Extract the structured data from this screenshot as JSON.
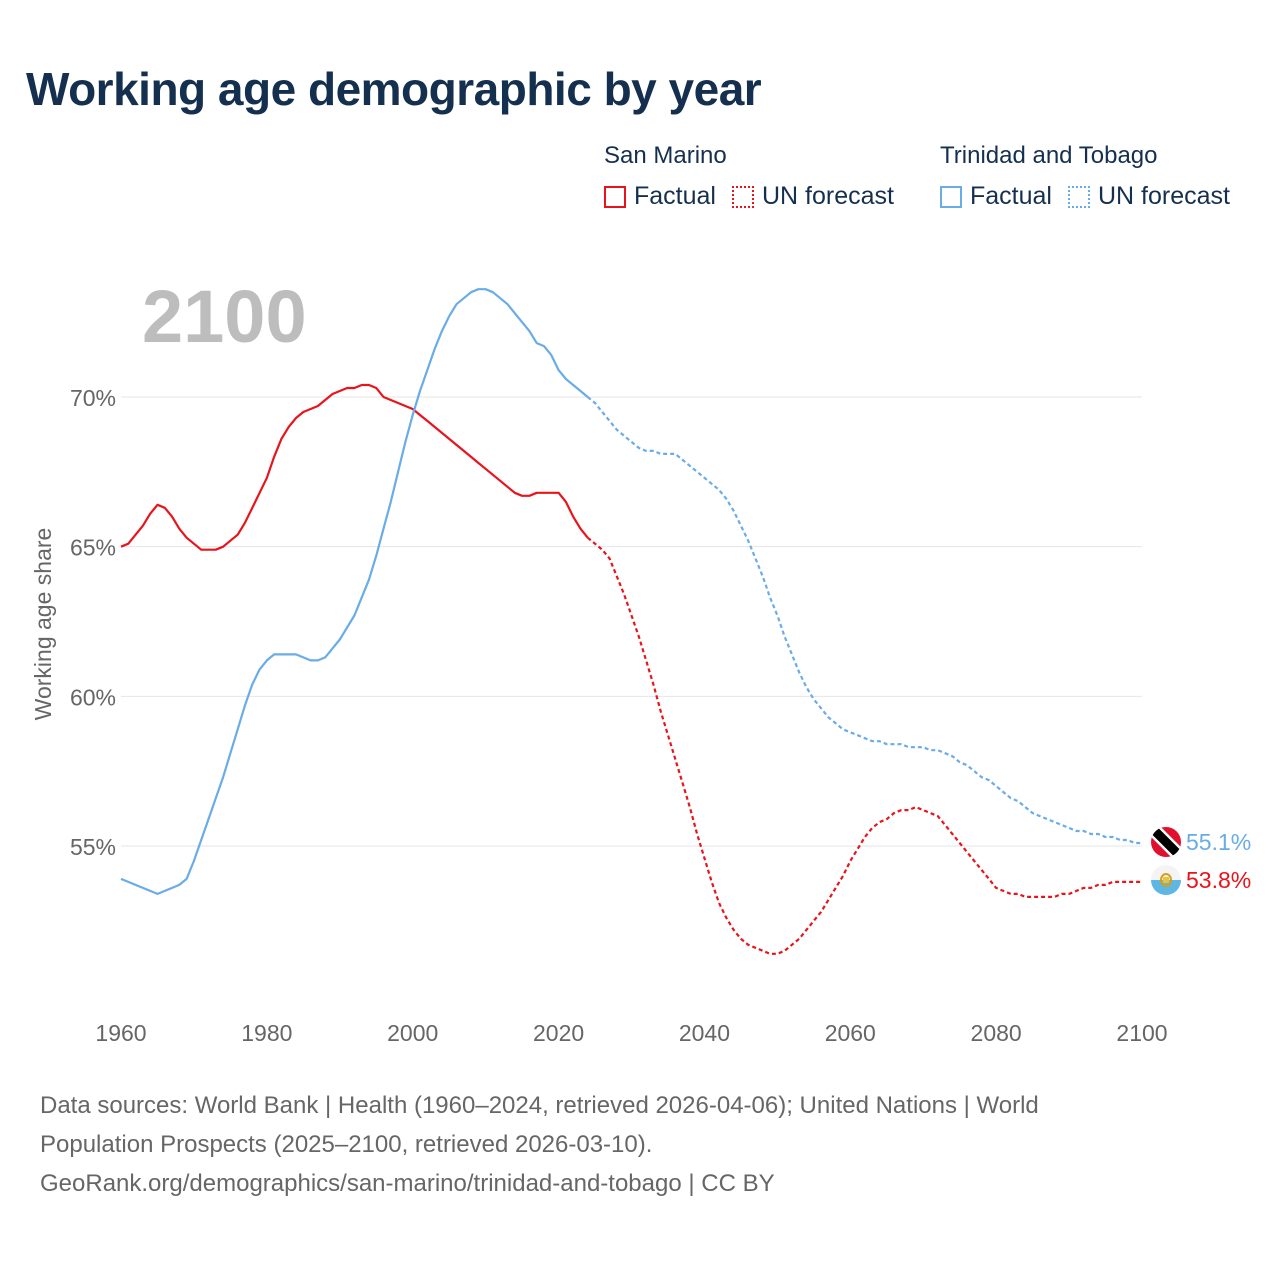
{
  "title": "Working age demographic by year",
  "legend": {
    "groups": [
      {
        "name": "San Marino",
        "factual_label": "Factual",
        "forecast_label": "UN forecast",
        "color": "#e8141c"
      },
      {
        "name": "Trinidad and Tobago",
        "factual_label": "Factual",
        "forecast_label": "UN forecast",
        "color": "#6aace6"
      }
    ]
  },
  "footer": {
    "line1": "Data sources: World Bank | Health (1960–2024, retrieved 2026-04-06); United Nations | World",
    "line2": "Population Prospects (2025–2100, retrieved 2026-03-10).",
    "line3": "GeoRank.org/demographics/san-marino/trinidad-and-tobago | CC BY"
  },
  "chart_data": {
    "type": "line",
    "year_label": "2100",
    "ylabel": "Working age share",
    "xlim": [
      1960,
      2100
    ],
    "ylim": [
      49.5,
      74.0
    ],
    "x_ticks": [
      "1960",
      "1980",
      "2000",
      "2020",
      "2040",
      "2060",
      "2080",
      "2100"
    ],
    "y_ticks": [
      {
        "value": 55,
        "label": "55%"
      },
      {
        "value": 60,
        "label": "60%"
      },
      {
        "value": 65,
        "label": "65%"
      },
      {
        "value": 70,
        "label": "70%"
      }
    ],
    "factual_end_year": 2024,
    "series": [
      {
        "name": "San Marino",
        "color": "#e8141c",
        "end_label": "53.8%",
        "points": [
          [
            1960,
            65.0
          ],
          [
            1961,
            65.1
          ],
          [
            1962,
            65.4
          ],
          [
            1963,
            65.7
          ],
          [
            1964,
            66.1
          ],
          [
            1965,
            66.4
          ],
          [
            1966,
            66.3
          ],
          [
            1967,
            66.0
          ],
          [
            1968,
            65.6
          ],
          [
            1969,
            65.3
          ],
          [
            1970,
            65.1
          ],
          [
            1971,
            64.9
          ],
          [
            1972,
            64.9
          ],
          [
            1973,
            64.9
          ],
          [
            1974,
            65.0
          ],
          [
            1975,
            65.2
          ],
          [
            1976,
            65.4
          ],
          [
            1977,
            65.8
          ],
          [
            1978,
            66.3
          ],
          [
            1979,
            66.8
          ],
          [
            1980,
            67.3
          ],
          [
            1981,
            68.0
          ],
          [
            1982,
            68.6
          ],
          [
            1983,
            69.0
          ],
          [
            1984,
            69.3
          ],
          [
            1985,
            69.5
          ],
          [
            1986,
            69.6
          ],
          [
            1987,
            69.7
          ],
          [
            1988,
            69.9
          ],
          [
            1989,
            70.1
          ],
          [
            1990,
            70.2
          ],
          [
            1991,
            70.3
          ],
          [
            1992,
            70.3
          ],
          [
            1993,
            70.4
          ],
          [
            1994,
            70.4
          ],
          [
            1995,
            70.3
          ],
          [
            1996,
            70.0
          ],
          [
            1997,
            69.9
          ],
          [
            1998,
            69.8
          ],
          [
            1999,
            69.7
          ],
          [
            2000,
            69.6
          ],
          [
            2001,
            69.4
          ],
          [
            2002,
            69.2
          ],
          [
            2003,
            69.0
          ],
          [
            2004,
            68.8
          ],
          [
            2005,
            68.6
          ],
          [
            2006,
            68.4
          ],
          [
            2007,
            68.2
          ],
          [
            2008,
            68.0
          ],
          [
            2009,
            67.8
          ],
          [
            2010,
            67.6
          ],
          [
            2011,
            67.4
          ],
          [
            2012,
            67.2
          ],
          [
            2013,
            67.0
          ],
          [
            2014,
            66.8
          ],
          [
            2015,
            66.7
          ],
          [
            2016,
            66.7
          ],
          [
            2017,
            66.8
          ],
          [
            2018,
            66.8
          ],
          [
            2019,
            66.8
          ],
          [
            2020,
            66.8
          ],
          [
            2021,
            66.5
          ],
          [
            2022,
            66.0
          ],
          [
            2023,
            65.6
          ],
          [
            2024,
            65.3
          ],
          [
            2025,
            65.1
          ],
          [
            2026,
            64.9
          ],
          [
            2027,
            64.6
          ],
          [
            2028,
            64.0
          ],
          [
            2029,
            63.4
          ],
          [
            2030,
            62.7
          ],
          [
            2031,
            62.0
          ],
          [
            2032,
            61.2
          ],
          [
            2033,
            60.4
          ],
          [
            2034,
            59.5
          ],
          [
            2035,
            58.7
          ],
          [
            2036,
            57.9
          ],
          [
            2037,
            57.1
          ],
          [
            2038,
            56.3
          ],
          [
            2039,
            55.4
          ],
          [
            2040,
            54.6
          ],
          [
            2041,
            53.8
          ],
          [
            2042,
            53.1
          ],
          [
            2043,
            52.6
          ],
          [
            2044,
            52.2
          ],
          [
            2045,
            51.9
          ],
          [
            2046,
            51.7
          ],
          [
            2047,
            51.6
          ],
          [
            2048,
            51.5
          ],
          [
            2049,
            51.4
          ],
          [
            2050,
            51.4
          ],
          [
            2051,
            51.5
          ],
          [
            2052,
            51.7
          ],
          [
            2053,
            51.9
          ],
          [
            2054,
            52.2
          ],
          [
            2055,
            52.5
          ],
          [
            2056,
            52.8
          ],
          [
            2057,
            53.2
          ],
          [
            2058,
            53.6
          ],
          [
            2059,
            54.0
          ],
          [
            2060,
            54.5
          ],
          [
            2061,
            54.9
          ],
          [
            2062,
            55.3
          ],
          [
            2063,
            55.6
          ],
          [
            2064,
            55.8
          ],
          [
            2065,
            55.9
          ],
          [
            2066,
            56.1
          ],
          [
            2067,
            56.2
          ],
          [
            2068,
            56.2
          ],
          [
            2069,
            56.3
          ],
          [
            2070,
            56.2
          ],
          [
            2071,
            56.1
          ],
          [
            2072,
            56.0
          ],
          [
            2073,
            55.7
          ],
          [
            2074,
            55.4
          ],
          [
            2075,
            55.1
          ],
          [
            2076,
            54.8
          ],
          [
            2077,
            54.5
          ],
          [
            2078,
            54.2
          ],
          [
            2079,
            53.9
          ],
          [
            2080,
            53.6
          ],
          [
            2081,
            53.5
          ],
          [
            2082,
            53.4
          ],
          [
            2083,
            53.4
          ],
          [
            2084,
            53.3
          ],
          [
            2085,
            53.3
          ],
          [
            2086,
            53.3
          ],
          [
            2087,
            53.3
          ],
          [
            2088,
            53.3
          ],
          [
            2089,
            53.4
          ],
          [
            2090,
            53.4
          ],
          [
            2091,
            53.5
          ],
          [
            2092,
            53.6
          ],
          [
            2093,
            53.6
          ],
          [
            2094,
            53.7
          ],
          [
            2095,
            53.7
          ],
          [
            2096,
            53.8
          ],
          [
            2097,
            53.8
          ],
          [
            2098,
            53.8
          ],
          [
            2099,
            53.8
          ],
          [
            2100,
            53.8
          ]
        ]
      },
      {
        "name": "Trinidad and Tobago",
        "color": "#6aace6",
        "end_label": "55.1%",
        "points": [
          [
            1960,
            53.9
          ],
          [
            1961,
            53.8
          ],
          [
            1962,
            53.7
          ],
          [
            1963,
            53.6
          ],
          [
            1964,
            53.5
          ],
          [
            1965,
            53.4
          ],
          [
            1966,
            53.5
          ],
          [
            1967,
            53.6
          ],
          [
            1968,
            53.7
          ],
          [
            1969,
            53.9
          ],
          [
            1970,
            54.5
          ],
          [
            1971,
            55.2
          ],
          [
            1972,
            55.9
          ],
          [
            1973,
            56.6
          ],
          [
            1974,
            57.3
          ],
          [
            1975,
            58.1
          ],
          [
            1976,
            58.9
          ],
          [
            1977,
            59.7
          ],
          [
            1978,
            60.4
          ],
          [
            1979,
            60.9
          ],
          [
            1980,
            61.2
          ],
          [
            1981,
            61.4
          ],
          [
            1982,
            61.4
          ],
          [
            1983,
            61.4
          ],
          [
            1984,
            61.4
          ],
          [
            1985,
            61.3
          ],
          [
            1986,
            61.2
          ],
          [
            1987,
            61.2
          ],
          [
            1988,
            61.3
          ],
          [
            1989,
            61.6
          ],
          [
            1990,
            61.9
          ],
          [
            1991,
            62.3
          ],
          [
            1992,
            62.7
          ],
          [
            1993,
            63.3
          ],
          [
            1994,
            63.9
          ],
          [
            1995,
            64.7
          ],
          [
            1996,
            65.6
          ],
          [
            1997,
            66.5
          ],
          [
            1998,
            67.5
          ],
          [
            1999,
            68.5
          ],
          [
            2000,
            69.4
          ],
          [
            2001,
            70.2
          ],
          [
            2002,
            70.9
          ],
          [
            2003,
            71.6
          ],
          [
            2004,
            72.2
          ],
          [
            2005,
            72.7
          ],
          [
            2006,
            73.1
          ],
          [
            2007,
            73.3
          ],
          [
            2008,
            73.5
          ],
          [
            2009,
            73.6
          ],
          [
            2010,
            73.6
          ],
          [
            2011,
            73.5
          ],
          [
            2012,
            73.3
          ],
          [
            2013,
            73.1
          ],
          [
            2014,
            72.8
          ],
          [
            2015,
            72.5
          ],
          [
            2016,
            72.2
          ],
          [
            2017,
            71.8
          ],
          [
            2018,
            71.7
          ],
          [
            2019,
            71.4
          ],
          [
            2020,
            70.9
          ],
          [
            2021,
            70.6
          ],
          [
            2022,
            70.4
          ],
          [
            2023,
            70.2
          ],
          [
            2024,
            70.0
          ],
          [
            2025,
            69.8
          ],
          [
            2026,
            69.5
          ],
          [
            2027,
            69.2
          ],
          [
            2028,
            68.9
          ],
          [
            2029,
            68.7
          ],
          [
            2030,
            68.5
          ],
          [
            2031,
            68.3
          ],
          [
            2032,
            68.2
          ],
          [
            2033,
            68.2
          ],
          [
            2034,
            68.1
          ],
          [
            2035,
            68.1
          ],
          [
            2036,
            68.1
          ],
          [
            2037,
            67.9
          ],
          [
            2038,
            67.7
          ],
          [
            2039,
            67.5
          ],
          [
            2040,
            67.3
          ],
          [
            2041,
            67.1
          ],
          [
            2042,
            66.9
          ],
          [
            2043,
            66.6
          ],
          [
            2044,
            66.2
          ],
          [
            2045,
            65.7
          ],
          [
            2046,
            65.2
          ],
          [
            2047,
            64.6
          ],
          [
            2048,
            64.0
          ],
          [
            2049,
            63.3
          ],
          [
            2050,
            62.7
          ],
          [
            2051,
            62.0
          ],
          [
            2052,
            61.4
          ],
          [
            2053,
            60.8
          ],
          [
            2054,
            60.3
          ],
          [
            2055,
            59.9
          ],
          [
            2056,
            59.6
          ],
          [
            2057,
            59.3
          ],
          [
            2058,
            59.1
          ],
          [
            2059,
            58.9
          ],
          [
            2060,
            58.8
          ],
          [
            2061,
            58.7
          ],
          [
            2062,
            58.6
          ],
          [
            2063,
            58.5
          ],
          [
            2064,
            58.5
          ],
          [
            2065,
            58.4
          ],
          [
            2066,
            58.4
          ],
          [
            2067,
            58.4
          ],
          [
            2068,
            58.3
          ],
          [
            2069,
            58.3
          ],
          [
            2070,
            58.3
          ],
          [
            2071,
            58.2
          ],
          [
            2072,
            58.2
          ],
          [
            2073,
            58.1
          ],
          [
            2074,
            58.0
          ],
          [
            2075,
            57.8
          ],
          [
            2076,
            57.7
          ],
          [
            2077,
            57.5
          ],
          [
            2078,
            57.3
          ],
          [
            2079,
            57.2
          ],
          [
            2080,
            57.0
          ],
          [
            2081,
            56.8
          ],
          [
            2082,
            56.6
          ],
          [
            2083,
            56.5
          ],
          [
            2084,
            56.3
          ],
          [
            2085,
            56.1
          ],
          [
            2086,
            56.0
          ],
          [
            2087,
            55.9
          ],
          [
            2088,
            55.8
          ],
          [
            2089,
            55.7
          ],
          [
            2090,
            55.6
          ],
          [
            2091,
            55.5
          ],
          [
            2092,
            55.5
          ],
          [
            2093,
            55.4
          ],
          [
            2094,
            55.4
          ],
          [
            2095,
            55.3
          ],
          [
            2096,
            55.3
          ],
          [
            2097,
            55.2
          ],
          [
            2098,
            55.2
          ],
          [
            2099,
            55.1
          ],
          [
            2100,
            55.1
          ]
        ]
      }
    ]
  }
}
